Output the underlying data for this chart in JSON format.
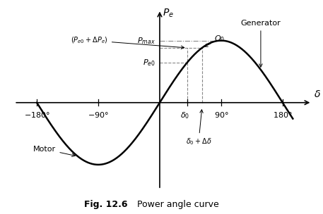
{
  "title_bold": "Fig. 12.6",
  "title_normal": "   Power angle curve",
  "xlim": [
    -215,
    225
  ],
  "ylim": [
    -1.45,
    1.55
  ],
  "delta0_deg": 40,
  "delta0_plus_deg": 62,
  "Pmax": 1.0,
  "bg_color": "#ffffff",
  "curve_color": "#000000",
  "dashed_color": "#888888",
  "dashdot_color": "#888888",
  "curve_lw": 1.8,
  "annot_fontsize": 8,
  "tick_label_fontsize": 8,
  "axis_label_fontsize": 10
}
